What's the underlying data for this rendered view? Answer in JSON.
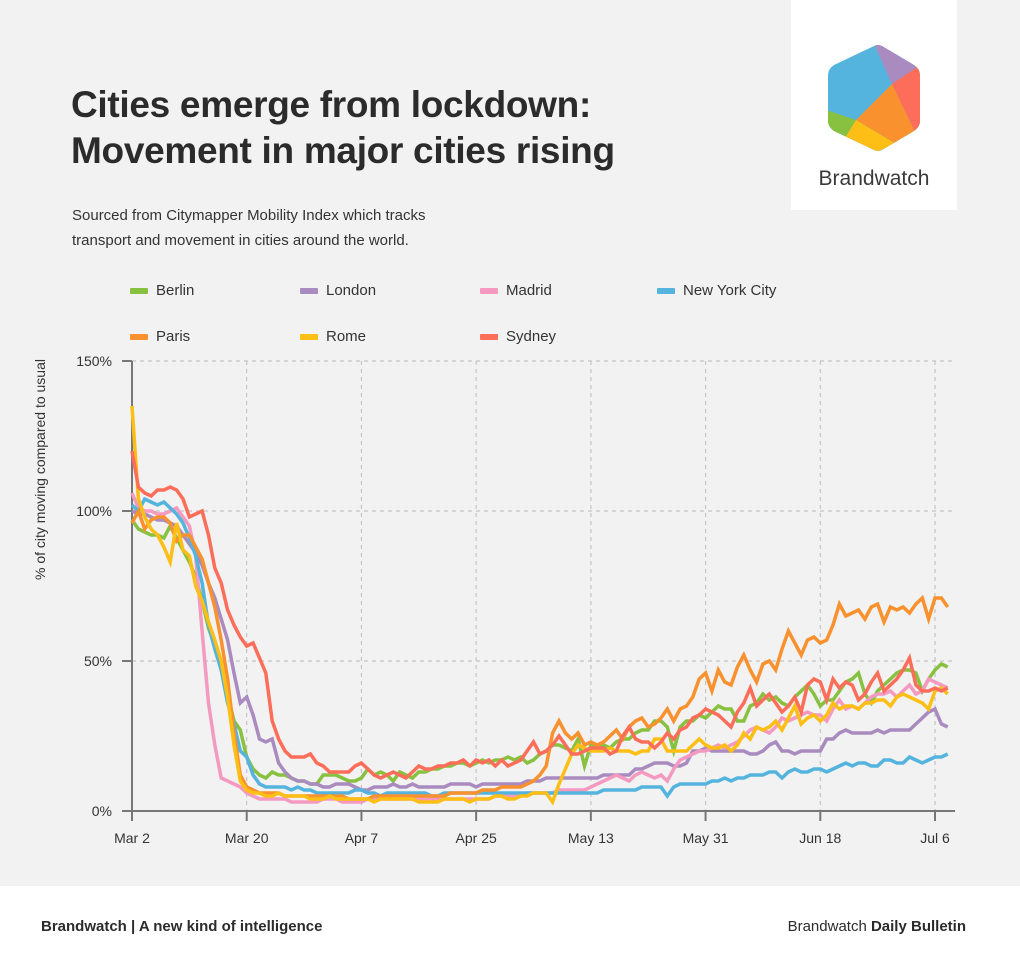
{
  "header": {
    "title_line1": "Cities emerge from lockdown:",
    "title_line2": "Movement in major cities rising",
    "subtitle_line1": "Sourced from Citymapper Mobility Index which tracks",
    "subtitle_line2": "transport and movement in cities around the world."
  },
  "logo": {
    "name": "Brandwatch",
    "icon": "hexagon-logo-icon",
    "colors": [
      "#55b4dd",
      "#a98bbf",
      "#fd6e5a",
      "#f8912e",
      "#fdbf15",
      "#87c13f"
    ]
  },
  "footer": {
    "left": "Brandwatch | A new kind of intelligence",
    "right_regular": "Brandwatch",
    "right_bold": "Daily Bulletin"
  },
  "chart_data": {
    "type": "line",
    "title": "Cities emerge from lockdown: Movement in major cities rising",
    "xlabel": "",
    "ylabel": "% of city moving compared to usual",
    "x_start": "Mar 2",
    "x_unit": "day",
    "x_ticks": [
      {
        "label": "Mar 2",
        "day": 0
      },
      {
        "label": "Mar 20",
        "day": 18
      },
      {
        "label": "Apr 7",
        "day": 36
      },
      {
        "label": "Apr 25",
        "day": 54
      },
      {
        "label": "May 13",
        "day": 72
      },
      {
        "label": "May 31",
        "day": 90
      },
      {
        "label": "Jun 18",
        "day": 108
      },
      {
        "label": "Jul 6",
        "day": 126
      }
    ],
    "y_ticks": [
      {
        "label": "0%",
        "value": 0
      },
      {
        "label": "50%",
        "value": 50
      },
      {
        "label": "100%",
        "value": 100
      },
      {
        "label": "150%",
        "value": 150
      }
    ],
    "ylim": [
      0,
      150
    ],
    "xlim": [
      0,
      129
    ],
    "grid": true,
    "legend_position": "top",
    "series": [
      {
        "name": "Berlin",
        "color": "#87c13f",
        "values": [
          97,
          94,
          93,
          92,
          92,
          91,
          95,
          91,
          87,
          83,
          78,
          70,
          61,
          55,
          47,
          39,
          30,
          27,
          18,
          14,
          12,
          11,
          13,
          12,
          12,
          11,
          10,
          10,
          9,
          9,
          12,
          12,
          12,
          11,
          10,
          10,
          11,
          14,
          12,
          13,
          12,
          10,
          13,
          12,
          11,
          13,
          13,
          14,
          14,
          15,
          15,
          16,
          16,
          15,
          16,
          17,
          16,
          17,
          17,
          18,
          17,
          18,
          16,
          17,
          19,
          20,
          22,
          22,
          21,
          20,
          24,
          15,
          22,
          22,
          22,
          21,
          23,
          24,
          24,
          26,
          27,
          27,
          30,
          30,
          28,
          20,
          28,
          30,
          30,
          32,
          31,
          33,
          35,
          34,
          34,
          30,
          30,
          35,
          36,
          39,
          37,
          38,
          36,
          35,
          38,
          40,
          42,
          39,
          35,
          37,
          37,
          40,
          43,
          44,
          46,
          39,
          36,
          40,
          42,
          44,
          46,
          47,
          47,
          46,
          40,
          44,
          47,
          49,
          48
        ]
      },
      {
        "name": "London",
        "color": "#a98bbf",
        "values": [
          100,
          99,
          99,
          98,
          97,
          97,
          96,
          95,
          92,
          89,
          86,
          82,
          76,
          71,
          64,
          57,
          46,
          36,
          38,
          32,
          24,
          23,
          24,
          16,
          13,
          11,
          10,
          10,
          9,
          9,
          8,
          8,
          9,
          9,
          9,
          8,
          7,
          7,
          8,
          8,
          8,
          9,
          8,
          8,
          9,
          8,
          8,
          8,
          8,
          8,
          9,
          9,
          9,
          9,
          8,
          9,
          9,
          9,
          9,
          9,
          9,
          9,
          10,
          10,
          10,
          11,
          11,
          11,
          11,
          11,
          11,
          11,
          11,
          11,
          12,
          12,
          12,
          12,
          12,
          14,
          14,
          15,
          16,
          16,
          16,
          15,
          15,
          16,
          20,
          20,
          21,
          20,
          20,
          20,
          20,
          20,
          20,
          19,
          19,
          20,
          22,
          23,
          20,
          20,
          19,
          20,
          20,
          20,
          20,
          24,
          24,
          26,
          27,
          26,
          26,
          26,
          26,
          27,
          26,
          27,
          27,
          27,
          27,
          29,
          31,
          33,
          34,
          29,
          28
        ]
      },
      {
        "name": "Madrid",
        "color": "#f49ac1",
        "values": [
          106,
          101,
          100,
          100,
          99,
          99,
          100,
          101,
          98,
          95,
          85,
          60,
          36,
          22,
          11,
          10,
          9,
          8,
          6,
          5,
          4,
          4,
          4,
          4,
          4,
          3,
          3,
          3,
          3,
          3,
          4,
          4,
          4,
          3,
          3,
          3,
          3,
          4,
          4,
          4,
          4,
          4,
          4,
          4,
          4,
          4,
          4,
          4,
          4,
          4,
          4,
          4,
          4,
          4,
          4,
          4,
          4,
          5,
          5,
          5,
          5,
          5,
          6,
          6,
          6,
          6,
          6,
          7,
          7,
          7,
          7,
          7,
          8,
          9,
          10,
          11,
          12,
          11,
          10,
          12,
          13,
          12,
          11,
          12,
          10,
          14,
          17,
          18,
          19,
          20,
          20,
          21,
          22,
          21,
          22,
          23,
          25,
          27,
          28,
          27,
          26,
          28,
          31,
          30,
          31,
          32,
          33,
          32,
          32,
          30,
          34,
          37,
          34,
          35,
          34,
          36,
          38,
          39,
          39,
          40,
          38,
          40,
          42,
          39,
          40,
          44,
          43,
          42,
          41
        ]
      },
      {
        "name": "New York City",
        "color": "#55b4dd",
        "values": [
          102,
          100,
          104,
          103,
          102,
          103,
          101,
          99,
          96,
          91,
          85,
          76,
          62,
          54,
          47,
          36,
          29,
          20,
          18,
          12,
          9,
          8,
          8,
          8,
          8,
          7,
          8,
          7,
          7,
          6,
          6,
          6,
          6,
          6,
          6,
          7,
          7,
          6,
          6,
          5,
          6,
          6,
          6,
          6,
          6,
          6,
          6,
          5,
          5,
          6,
          6,
          6,
          6,
          6,
          6,
          6,
          6,
          6,
          6,
          6,
          6,
          6,
          6,
          6,
          6,
          6,
          6,
          6,
          6,
          6,
          6,
          6,
          6,
          6,
          7,
          7,
          7,
          7,
          7,
          7,
          8,
          8,
          8,
          8,
          5,
          8,
          9,
          9,
          9,
          9,
          9,
          10,
          10,
          11,
          10,
          11,
          11,
          12,
          12,
          12,
          13,
          13,
          11,
          13,
          14,
          13,
          13,
          14,
          14,
          13,
          14,
          15,
          16,
          15,
          16,
          16,
          15,
          15,
          17,
          17,
          16,
          16,
          18,
          17,
          16,
          17,
          18,
          18,
          19
        ]
      },
      {
        "name": "Paris",
        "color": "#f8912e",
        "values": [
          96,
          100,
          94,
          97,
          98,
          98,
          96,
          90,
          92,
          92,
          88,
          84,
          76,
          68,
          57,
          44,
          26,
          12,
          8,
          7,
          6,
          6,
          6,
          6,
          5,
          5,
          5,
          5,
          5,
          5,
          5,
          5,
          5,
          5,
          4,
          4,
          4,
          4,
          5,
          5,
          5,
          5,
          5,
          5,
          5,
          5,
          5,
          5,
          5,
          5,
          6,
          6,
          6,
          6,
          6,
          7,
          7,
          7,
          8,
          8,
          8,
          8,
          9,
          10,
          12,
          15,
          26,
          30,
          26,
          24,
          26,
          22,
          23,
          22,
          23,
          25,
          27,
          24,
          28,
          30,
          31,
          28,
          29,
          31,
          34,
          30,
          34,
          35,
          38,
          44,
          46,
          40,
          47,
          43,
          42,
          48,
          52,
          47,
          43,
          49,
          50,
          47,
          54,
          60,
          56,
          52,
          57,
          58,
          56,
          57,
          62,
          69,
          65,
          66,
          67,
          64,
          68,
          69,
          63,
          68,
          67,
          68,
          66,
          69,
          71,
          64,
          71,
          71,
          68
        ]
      },
      {
        "name": "Rome",
        "color": "#fdbf15",
        "values": [
          135,
          104,
          98,
          94,
          92,
          88,
          83,
          96,
          87,
          85,
          75,
          70,
          63,
          57,
          50,
          38,
          22,
          10,
          7,
          6,
          6,
          5,
          5,
          6,
          5,
          5,
          5,
          5,
          4,
          4,
          4,
          5,
          4,
          4,
          4,
          4,
          4,
          4,
          3,
          4,
          4,
          4,
          4,
          4,
          4,
          3,
          3,
          3,
          3,
          4,
          4,
          4,
          4,
          3,
          4,
          4,
          4,
          5,
          5,
          4,
          4,
          5,
          5,
          6,
          6,
          6,
          3,
          9,
          14,
          19,
          22,
          21,
          20,
          20,
          20,
          21,
          20,
          20,
          20,
          19,
          20,
          20,
          24,
          24,
          20,
          20,
          20,
          20,
          22,
          24,
          22,
          21,
          21,
          22,
          20,
          22,
          26,
          24,
          28,
          27,
          28,
          30,
          27,
          31,
          35,
          29,
          31,
          32,
          30,
          32,
          36,
          34,
          35,
          35,
          34,
          36,
          36,
          37,
          37,
          35,
          38,
          39,
          38,
          37,
          36,
          34,
          40,
          41,
          39
        ]
      },
      {
        "name": "Sydney",
        "color": "#fd6e5a",
        "values": [
          120,
          108,
          106,
          105,
          107,
          107,
          108,
          107,
          104,
          98,
          99,
          100,
          92,
          81,
          76,
          67,
          62,
          58,
          55,
          56,
          51,
          46,
          30,
          24,
          20,
          18,
          18,
          18,
          19,
          16,
          15,
          13,
          13,
          13,
          13,
          15,
          16,
          14,
          12,
          11,
          12,
          13,
          12,
          11,
          13,
          15,
          14,
          14,
          15,
          15,
          16,
          16,
          17,
          15,
          17,
          16,
          17,
          15,
          17,
          15,
          16,
          17,
          20,
          23,
          19,
          20,
          22,
          25,
          22,
          19,
          19,
          20,
          21,
          21,
          21,
          19,
          20,
          25,
          28,
          24,
          23,
          23,
          21,
          23,
          26,
          24,
          27,
          28,
          31,
          32,
          34,
          33,
          32,
          30,
          28,
          33,
          36,
          41,
          35,
          37,
          39,
          36,
          33,
          35,
          38,
          33,
          42,
          44,
          43,
          37,
          44,
          41,
          43,
          42,
          37,
          39,
          43,
          46,
          40,
          42,
          44,
          47,
          51,
          42,
          40,
          40,
          41,
          40,
          41
        ]
      }
    ]
  }
}
